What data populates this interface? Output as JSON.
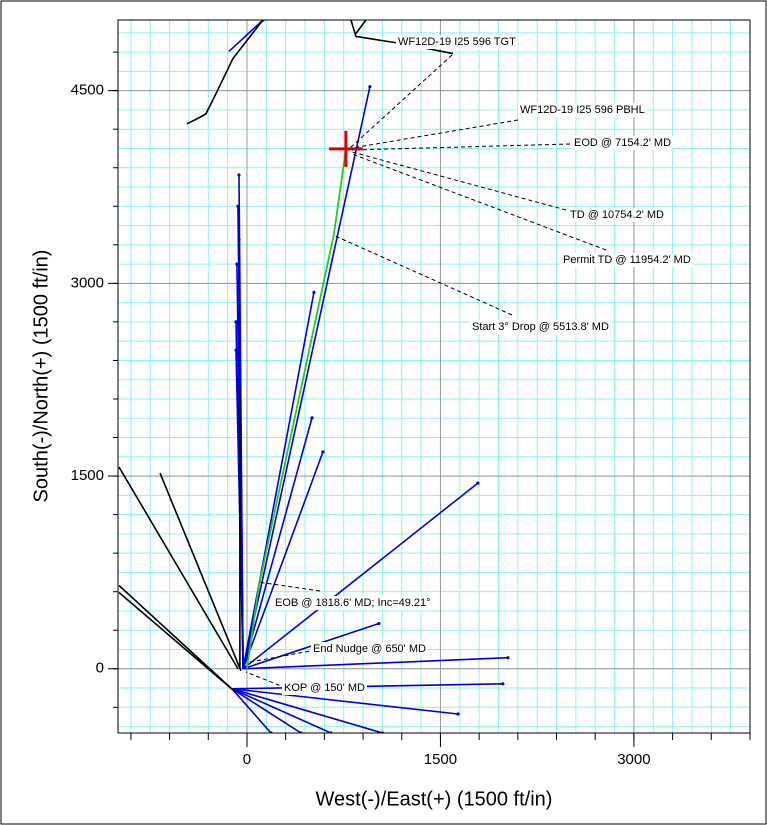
{
  "chart_data": {
    "type": "line",
    "x_label": "West(-)/East(+) (1500 ft/in)",
    "y_label": "South(-)/North(+) (1500 ft/in)",
    "xlim": [
      -1000,
      3900
    ],
    "ylim": [
      -500,
      5050
    ],
    "xticks": [
      0,
      1500,
      3000
    ],
    "yticks": [
      0,
      1500,
      3000,
      4500
    ],
    "minor_grid": 150,
    "minor_tick": 300,
    "grid": true,
    "series": [
      {
        "color": "#22cc22",
        "x": [
          0,
          93,
          674,
          767
        ],
        "values": [
          0,
          648,
          3383,
          4047
        ]
      },
      {
        "color": "#0000dd",
        "x": [
          -30,
          953
        ],
        "values": [
          0,
          4531
        ]
      },
      {
        "color": "#0000dd",
        "x": [
          -30,
          519
        ],
        "values": [
          0,
          2930
        ]
      },
      {
        "color": "#0000dd",
        "x": [
          -30,
          504
        ],
        "values": [
          0,
          1953
        ]
      },
      {
        "color": "#0000dd",
        "x": [
          -30,
          589
        ],
        "values": [
          0,
          1688
        ]
      },
      {
        "color": "#0000dd",
        "x": [
          -30,
          1790
        ],
        "values": [
          0,
          1445
        ]
      },
      {
        "color": "#0000dd",
        "x": [
          -30,
          1023
        ],
        "values": [
          0,
          352
        ]
      },
      {
        "color": "#0000dd",
        "x": [
          -30,
          2023
        ],
        "values": [
          0,
          86
        ]
      },
      {
        "color": "#0000dd",
        "x": [
          -116,
          1984
        ],
        "values": [
          -156,
          -117
        ]
      },
      {
        "color": "#0000dd",
        "x": [
          -116,
          1636
        ],
        "values": [
          -156,
          -352
        ]
      },
      {
        "color": "#0000dd",
        "x": [
          -116,
          1050
        ],
        "values": [
          -156,
          -500
        ]
      },
      {
        "color": "#0000dd",
        "x": [
          -116,
          651
        ],
        "values": [
          -156,
          -500
        ]
      },
      {
        "color": "#0000dd",
        "x": [
          -116,
          419
        ],
        "values": [
          -156,
          -500
        ]
      },
      {
        "color": "#0000dd",
        "x": [
          -116,
          186
        ],
        "values": [
          -156,
          -500
        ]
      },
      {
        "color": "#0000dd",
        "x": [
          -30,
          -62
        ],
        "values": [
          0,
          3844
        ]
      },
      {
        "color": "#0000dd",
        "x": [
          -30,
          -70
        ],
        "values": [
          0,
          3600
        ]
      },
      {
        "color": "#0000dd",
        "x": [
          -30,
          -62
        ],
        "values": [
          0,
          3340
        ]
      },
      {
        "color": "#0000dd",
        "x": [
          -30,
          -78
        ],
        "values": [
          0,
          3150
        ]
      },
      {
        "color": "#0000dd",
        "x": [
          -30,
          -85
        ],
        "values": [
          0,
          2700
        ]
      },
      {
        "color": "#0000dd",
        "x": [
          -30,
          -85
        ],
        "values": [
          0,
          2480
        ]
      },
      {
        "color": "#0000dd",
        "x": [
          -140,
          124
        ],
        "values": [
          4805,
          5050
        ]
      },
      {
        "color": "#000000",
        "x": [
          -992,
          -70
        ],
        "values": [
          1570,
          0
        ]
      },
      {
        "color": "#000000",
        "x": [
          -674,
          -47
        ],
        "values": [
          1523,
          -16
        ]
      },
      {
        "color": "#000000",
        "x": [
          -992,
          -101
        ],
        "values": [
          648,
          -172
        ]
      },
      {
        "color": "#000000",
        "x": [
          -992,
          -101
        ],
        "values": [
          594,
          -172
        ]
      },
      {
        "color": "#000000",
        "x": [
          -465,
          -357,
          -318,
          -240,
          -109,
          124
        ],
        "values": [
          4242,
          4297,
          4320,
          4477,
          4750,
          5050
        ]
      },
      {
        "color": "#000000",
        "x": [
          -55,
          -55
        ],
        "values": [
          0,
          2187
        ]
      },
      {
        "color": "#000000",
        "x": [
          806,
          845,
          1194,
          1597
        ],
        "values": [
          5050,
          4922,
          4867,
          4789
        ]
      },
      {
        "color": "#000000",
        "x": [
          922,
          845
        ],
        "values": [
          5050,
          4945
        ]
      }
    ],
    "target": {
      "x": 767,
      "y": 4047,
      "color": "#dd0000"
    },
    "annotations": [
      "WF12D-19 I25 596 TGT",
      "WF12D-19 I25 596 PBHL",
      "EOD @ 7154.2' MD",
      "TD @ 10754.2' MD",
      "Permit TD @ 11954.2' MD",
      "Start 3° Drop @ 5513.8' MD",
      "EOB @ 1818.6' MD; Inc=49.21°",
      "End Nudge @ 650' MD",
      "KOP @ 150' MD"
    ]
  }
}
